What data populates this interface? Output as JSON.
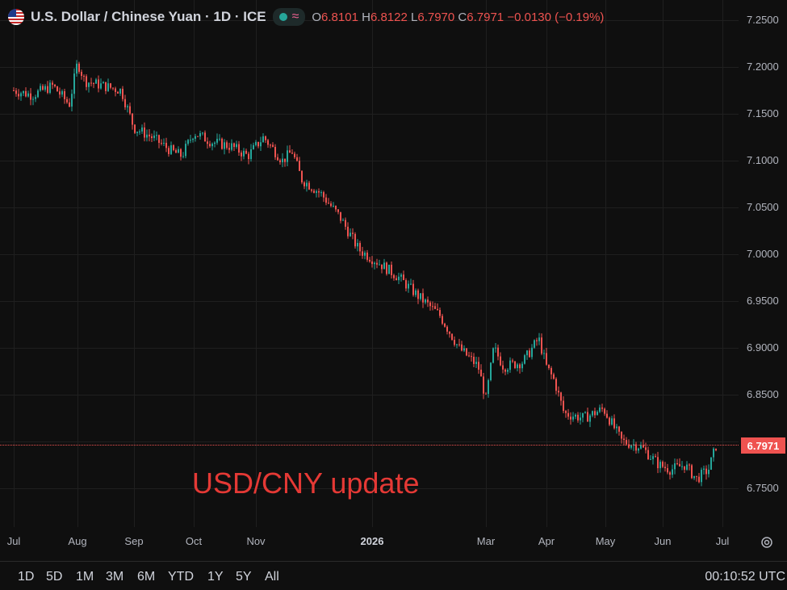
{
  "header": {
    "symbol_title": "U.S. Dollar / Chinese Yuan · 1D · ICE",
    "open_label": "O",
    "open": "6.8101",
    "high_label": "H",
    "high": "6.8122",
    "low_label": "L",
    "low": "6.7970",
    "close_label": "C",
    "close": "6.7971",
    "change": "−0.0130 (−0.19%)"
  },
  "price_axis": [
    "7.2500",
    "7.2000",
    "7.1500",
    "7.1000",
    "7.0500",
    "7.0000",
    "6.9500",
    "6.9000",
    "6.8500",
    "6.8000",
    "6.7500"
  ],
  "last_price_label": "6.7971",
  "time_axis": [
    "Jul",
    "Aug",
    "Sep",
    "Oct",
    "Nov",
    "2026",
    "Mar",
    "Apr",
    "May",
    "Jun",
    "Jul"
  ],
  "annotation": "USD/CNY update",
  "ranges": [
    "1D",
    "5D",
    "1M",
    "3M",
    "6M",
    "YTD",
    "1Y",
    "5Y",
    "All"
  ],
  "clock": "00:10:52 UTC",
  "colors": {
    "up": "#26a69a",
    "down": "#ef5350",
    "background": "#0f0f0f"
  },
  "chart_data": {
    "type": "candlestick",
    "interval": "1D",
    "ylim": [
      6.72,
      7.27
    ],
    "path": [
      [
        "2025-07-01",
        7.175
      ],
      [
        "2025-07-10",
        7.17
      ],
      [
        "2025-07-20",
        7.18
      ],
      [
        "2025-07-28",
        7.16
      ],
      [
        "2025-08-01",
        7.205
      ],
      [
        "2025-08-05",
        7.185
      ],
      [
        "2025-08-15",
        7.18
      ],
      [
        "2025-08-25",
        7.175
      ],
      [
        "2025-09-01",
        7.135
      ],
      [
        "2025-09-10",
        7.125
      ],
      [
        "2025-09-20",
        7.11
      ],
      [
        "2025-09-25",
        7.105
      ],
      [
        "2025-10-01",
        7.13
      ],
      [
        "2025-10-10",
        7.12
      ],
      [
        "2025-10-20",
        7.115
      ],
      [
        "2025-10-28",
        7.105
      ],
      [
        "2025-11-05",
        7.125
      ],
      [
        "2025-11-15",
        7.1
      ],
      [
        "2025-11-20",
        7.11
      ],
      [
        "2025-11-25",
        7.08
      ],
      [
        "2025-12-05",
        7.065
      ],
      [
        "2025-12-15",
        7.04
      ],
      [
        "2025-12-25",
        7.005
      ],
      [
        "2026-01-05",
        6.99
      ],
      [
        "2026-01-15",
        6.975
      ],
      [
        "2026-01-25",
        6.955
      ],
      [
        "2026-02-05",
        6.935
      ],
      [
        "2026-02-15",
        6.9
      ],
      [
        "2026-02-25",
        6.88
      ],
      [
        "2026-03-01",
        6.845
      ],
      [
        "2026-03-05",
        6.9
      ],
      [
        "2026-03-10",
        6.88
      ],
      [
        "2026-03-20",
        6.885
      ],
      [
        "2026-03-28",
        6.91
      ],
      [
        "2026-04-01",
        6.88
      ],
      [
        "2026-04-05",
        6.865
      ],
      [
        "2026-04-10",
        6.83
      ],
      [
        "2026-04-20",
        6.825
      ],
      [
        "2026-04-30",
        6.835
      ],
      [
        "2026-05-10",
        6.8
      ],
      [
        "2026-05-20",
        6.795
      ],
      [
        "2026-05-30",
        6.775
      ],
      [
        "2026-06-05",
        6.77
      ],
      [
        "2026-06-12",
        6.775
      ],
      [
        "2026-06-18",
        6.76
      ],
      [
        "2026-06-24",
        6.77
      ],
      [
        "2026-06-28",
        6.797
      ]
    ]
  }
}
